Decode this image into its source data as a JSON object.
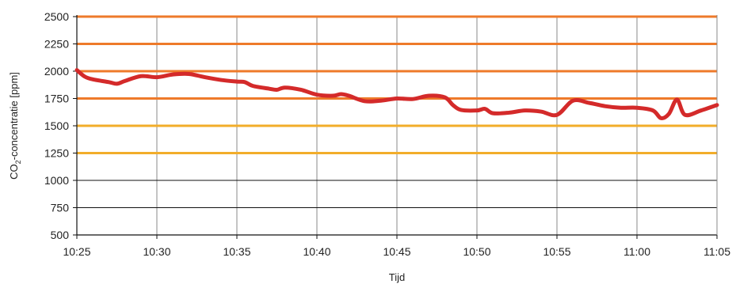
{
  "chart_data": {
    "type": "line",
    "xlabel": "Tijd",
    "ylabel_main": "CO",
    "ylabel_sub": "2",
    "ylabel_rest": "-concentratie [ppm]",
    "xlim_minutes": [
      0,
      40
    ],
    "ylim": [
      500,
      2500
    ],
    "yticks": [
      500,
      750,
      1000,
      1250,
      1500,
      1750,
      2000,
      2250,
      2500
    ],
    "xticks": [
      "10:25",
      "10:30",
      "10:35",
      "10:40",
      "10:45",
      "10:50",
      "10:55",
      "11:00",
      "11:05"
    ],
    "grid": true,
    "colors": {
      "line": "#d42a2a",
      "threshold_orange": "#ee7a2a",
      "threshold_yellow": "#f2ad2a",
      "grid": "#888888",
      "axis": "#111111"
    },
    "threshold_bands": [
      {
        "value": 2500,
        "color": "orange"
      },
      {
        "value": 2250,
        "color": "orange"
      },
      {
        "value": 2000,
        "color": "orange"
      },
      {
        "value": 1750,
        "color": "orange"
      },
      {
        "value": 1500,
        "color": "yellow"
      },
      {
        "value": 1250,
        "color": "yellow"
      }
    ],
    "series": [
      {
        "x": [
          "10:25",
          "10:25:30",
          "10:26",
          "10:27",
          "10:27:30",
          "10:28",
          "10:29",
          "10:30",
          "10:31",
          "10:32",
          "10:33",
          "10:34",
          "10:35",
          "10:35:30",
          "10:36",
          "10:37",
          "10:37:30",
          "10:38",
          "10:39",
          "10:40",
          "10:41",
          "10:41:30",
          "10:42",
          "10:43",
          "10:44",
          "10:45",
          "10:46",
          "10:47",
          "10:48",
          "10:48:30",
          "10:49",
          "10:50",
          "10:50:30",
          "10:51",
          "10:52",
          "10:53",
          "10:54",
          "10:55",
          "10:56",
          "10:57",
          "10:58",
          "10:59",
          "11:00",
          "11:01",
          "11:01:30",
          "11:02",
          "11:02:30",
          "11:03",
          "11:04",
          "11:05"
        ],
        "y": [
          2010,
          1950,
          1925,
          1900,
          1885,
          1910,
          1955,
          1945,
          1970,
          1975,
          1945,
          1920,
          1905,
          1900,
          1865,
          1840,
          1830,
          1850,
          1830,
          1785,
          1775,
          1790,
          1775,
          1725,
          1730,
          1750,
          1745,
          1775,
          1760,
          1690,
          1645,
          1640,
          1655,
          1615,
          1620,
          1640,
          1630,
          1600,
          1730,
          1710,
          1680,
          1665,
          1665,
          1640,
          1570,
          1610,
          1740,
          1600,
          1640,
          1690
        ]
      }
    ]
  }
}
